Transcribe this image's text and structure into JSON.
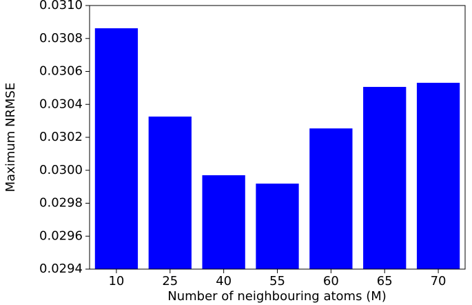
{
  "chart_data": {
    "type": "bar",
    "xlabel": "Number of neighbouring atoms (M)",
    "ylabel": "Maximum NRMSE",
    "categories": [
      "10",
      "25",
      "40",
      "55",
      "60",
      "65",
      "70"
    ],
    "values": [
      0.030862,
      0.030326,
      0.02997,
      0.029919,
      0.030254,
      0.030506,
      0.030531
    ],
    "color": "#0000ff",
    "ylim": [
      0.0294,
      0.031
    ],
    "yticks": [
      0.0294,
      0.0296,
      0.0298,
      {
        "value": 0.03,
        "label": "0.0300"
      },
      0.0302,
      0.0304,
      0.0306,
      0.0308,
      {
        "value": 0.031,
        "label": "0.0310"
      }
    ],
    "grid": false
  }
}
